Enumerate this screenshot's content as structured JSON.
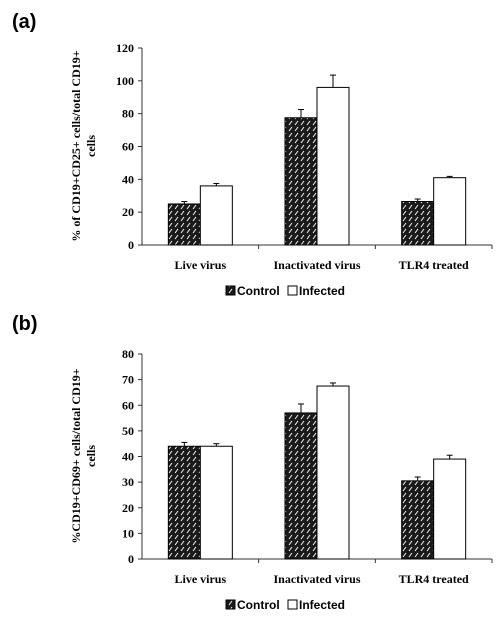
{
  "colors": {
    "axis": "#333333",
    "bar_outline": "#000000",
    "control_fill": "#1a1a1a",
    "control_hatch": "#ffffff",
    "infected_fill": "#ffffff"
  },
  "chart_data": [
    {
      "type": "bar",
      "panel_label": "(a)",
      "categories": [
        "Live virus",
        "Inactivated virus",
        "TLR4 treated"
      ],
      "series": [
        {
          "name": "Control",
          "values": [
            25,
            77.5,
            26.5
          ],
          "errors": [
            1.5,
            5,
            1.5
          ]
        },
        {
          "name": "Infected",
          "values": [
            36,
            96,
            41
          ],
          "errors": [
            1.5,
            7.5,
            0.8
          ]
        }
      ],
      "ylabel_lines": [
        "% of CD19+CD25+ cells/total CD19+",
        "cells"
      ],
      "ylim": [
        0,
        120
      ],
      "yticks": [
        "0",
        "20",
        "40",
        "60",
        "80",
        "100",
        "120"
      ],
      "grid": false,
      "legend": "bottom"
    },
    {
      "type": "bar",
      "panel_label": "(b)",
      "categories": [
        "Live virus",
        "Inactivated virus",
        "TLR4 treated"
      ],
      "series": [
        {
          "name": "Control",
          "values": [
            44,
            57,
            30.5
          ],
          "errors": [
            1.5,
            3.5,
            1.5
          ]
        },
        {
          "name": "Infected",
          "values": [
            44,
            67.5,
            39
          ],
          "errors": [
            1,
            1.2,
            1.5
          ]
        }
      ],
      "ylabel_lines": [
        "%CD19+CD69+ cells/total CD19+",
        "cells"
      ],
      "ylim": [
        0,
        80
      ],
      "yticks": [
        "0",
        "10",
        "20",
        "30",
        "40",
        "50",
        "60",
        "70",
        "80"
      ],
      "grid": false,
      "legend": "bottom"
    }
  ]
}
